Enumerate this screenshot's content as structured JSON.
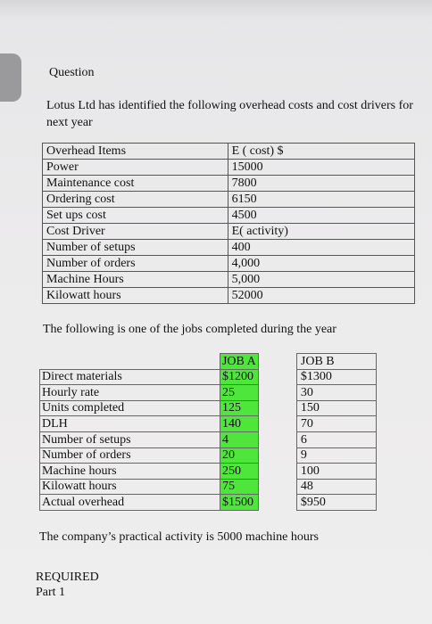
{
  "heading": "Question",
  "intro": "Lotus Ltd has identified the following overhead costs and cost drivers for next year",
  "cost_table": {
    "rows": [
      {
        "label": "Overhead Items",
        "value": "E ( cost) $"
      },
      {
        "label": "Power",
        "value": "15000"
      },
      {
        "label": "Maintenance cost",
        "value": "7800"
      },
      {
        "label": "Ordering cost",
        "value": "6150"
      },
      {
        "label": "Set ups cost",
        "value": "4500"
      },
      {
        "label": "Cost Driver",
        "value": "E( activity)"
      },
      {
        "label": "Number of setups",
        "value": "400"
      },
      {
        "label": "Number of orders",
        "value": "4,000"
      },
      {
        "label": "Machine Hours",
        "value": "5,000"
      },
      {
        "label": "Kilowatt hours",
        "value": "52000"
      }
    ]
  },
  "mid_text": "The following is one of the jobs completed during the year",
  "jobs_table": {
    "header": {
      "job_a": "JOB A",
      "job_b": "JOB B"
    },
    "rows": [
      {
        "label": "Direct materials",
        "job_a": "$1200",
        "job_b": "$1300"
      },
      {
        "label": "Hourly rate",
        "job_a": "25",
        "job_b": "30"
      },
      {
        "label": "Units completed",
        "job_a": "125",
        "job_b": "150"
      },
      {
        "label": "DLH",
        "job_a": "140",
        "job_b": "70"
      },
      {
        "label": "Number of setups",
        "job_a": "4",
        "job_b": "6"
      },
      {
        "label": "Number of orders",
        "job_a": "20",
        "job_b": "9"
      },
      {
        "label": "Machine hours",
        "job_a": "250",
        "job_b": "100"
      },
      {
        "label": "Kilowatt hours",
        "job_a": "75",
        "job_b": "48"
      },
      {
        "label": "Actual overhead",
        "job_a": "$1500",
        "job_b": "$950"
      }
    ],
    "highlight_color": "#4ee63a"
  },
  "practical_activity": "The company’s practical activity is 5000 machine hours",
  "required": {
    "title": "REQUIRED",
    "part": "Part 1"
  }
}
